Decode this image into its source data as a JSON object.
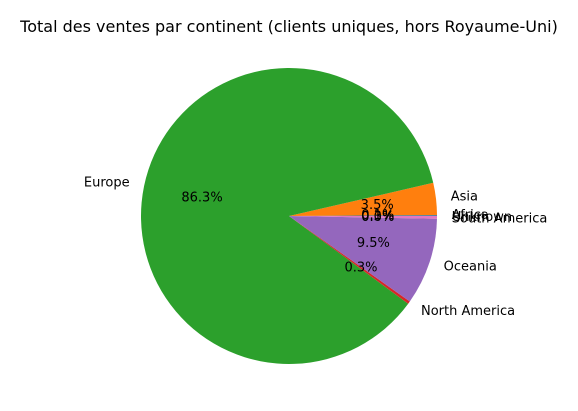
{
  "chart_data": {
    "type": "pie",
    "title": "Total des ventes par continent (clients uniques, hors Royaume-Uni)",
    "slices": [
      {
        "label": "Africa",
        "value": 0.1,
        "pct_label": "0.1%",
        "color": "#1f77b4"
      },
      {
        "label": "Asia",
        "value": 3.5,
        "pct_label": "3.5%",
        "color": "#ff7f0e"
      },
      {
        "label": "Europe",
        "value": 86.3,
        "pct_label": "86.3%",
        "color": "#2ca02c"
      },
      {
        "label": "North America",
        "value": 0.3,
        "pct_label": "0.3%",
        "color": "#d62728"
      },
      {
        "label": "Oceania",
        "value": 9.5,
        "pct_label": "9.5%",
        "color": "#9467bd"
      },
      {
        "label": "South America",
        "value": 0.0,
        "pct_label": "0.0%",
        "color": "#8c564b"
      },
      {
        "label": "Unknown",
        "value": 0.3,
        "pct_label": "0.3%",
        "color": "#e377c2"
      }
    ]
  }
}
